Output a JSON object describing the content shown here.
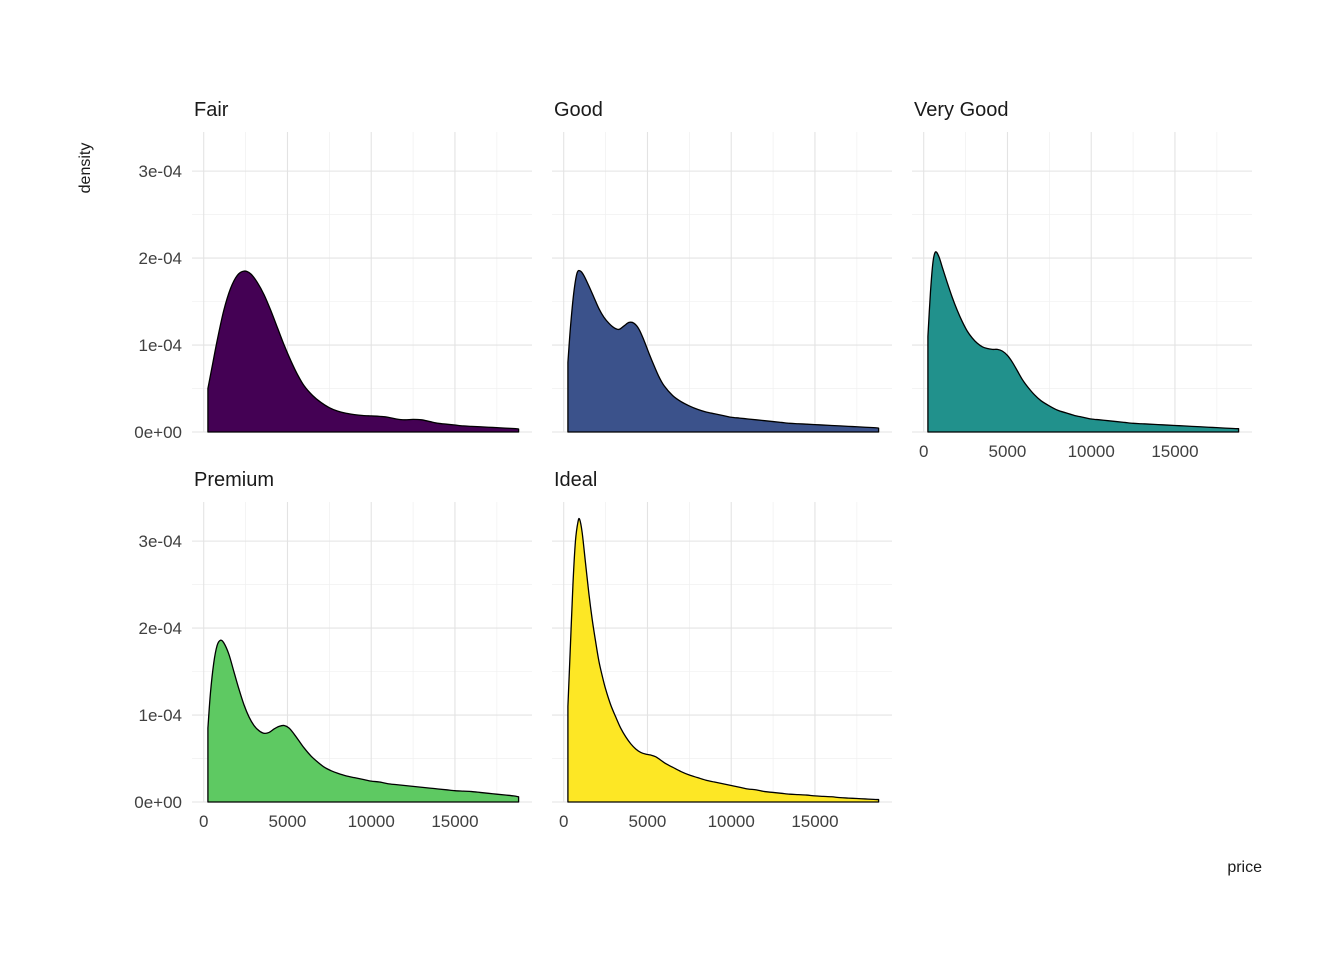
{
  "figure": {
    "xlabel": "price",
    "ylabel": "density"
  },
  "chart_data": {
    "type": "area",
    "variant": "faceted-density",
    "facet_variable": "cut",
    "x_variable": "price",
    "y_variable": "density",
    "grid": true,
    "legend": "none",
    "background": "#ffffff",
    "grid_color_major": "#e3e3e3",
    "grid_color_minor": "#f0f0f0",
    "curve_stroke": "#000000",
    "y_scale_note": "y values and y ticks are in units of 1e-4 density",
    "xlim": [
      -700,
      19600
    ],
    "ylim": [
      0,
      3.45
    ],
    "x_ticks": {
      "values": [
        0,
        5000,
        10000,
        15000
      ],
      "labels": [
        "0",
        "5000",
        "10000",
        "15000"
      ]
    },
    "x_minor": [
      2500,
      7500,
      12500,
      17500
    ],
    "y_ticks": {
      "values": [
        0,
        1,
        2,
        3
      ],
      "labels": [
        "0e+00",
        "1e-04",
        "2e-04",
        "3e-04"
      ]
    },
    "y_minor": [
      0.5,
      1.5,
      2.5
    ],
    "facets": [
      {
        "label": "Fair",
        "row": 0,
        "col": 0,
        "fill": "#440154",
        "show_x_axis": false,
        "show_y_axis": true,
        "points": [
          [
            250,
            0.5
          ],
          [
            500,
            0.75
          ],
          [
            800,
            1.05
          ],
          [
            1200,
            1.4
          ],
          [
            1600,
            1.65
          ],
          [
            2000,
            1.8
          ],
          [
            2400,
            1.85
          ],
          [
            2800,
            1.82
          ],
          [
            3200,
            1.72
          ],
          [
            3600,
            1.58
          ],
          [
            4000,
            1.4
          ],
          [
            4400,
            1.2
          ],
          [
            4800,
            1.0
          ],
          [
            5200,
            0.82
          ],
          [
            5600,
            0.66
          ],
          [
            6000,
            0.53
          ],
          [
            6500,
            0.42
          ],
          [
            7000,
            0.34
          ],
          [
            7500,
            0.28
          ],
          [
            8000,
            0.24
          ],
          [
            8500,
            0.215
          ],
          [
            9000,
            0.2
          ],
          [
            9500,
            0.19
          ],
          [
            10000,
            0.185
          ],
          [
            10500,
            0.18
          ],
          [
            11000,
            0.17
          ],
          [
            11500,
            0.15
          ],
          [
            12000,
            0.14
          ],
          [
            12500,
            0.145
          ],
          [
            13000,
            0.14
          ],
          [
            13500,
            0.12
          ],
          [
            14000,
            0.1
          ],
          [
            14500,
            0.09
          ],
          [
            15000,
            0.08
          ],
          [
            15500,
            0.07
          ],
          [
            16000,
            0.065
          ],
          [
            16500,
            0.06
          ],
          [
            17000,
            0.055
          ],
          [
            17500,
            0.05
          ],
          [
            18000,
            0.045
          ],
          [
            18500,
            0.04
          ],
          [
            18800,
            0.035
          ]
        ]
      },
      {
        "label": "Good",
        "row": 0,
        "col": 1,
        "fill": "#3B528B",
        "show_x_axis": false,
        "show_y_axis": false,
        "points": [
          [
            250,
            0.8
          ],
          [
            400,
            1.2
          ],
          [
            600,
            1.6
          ],
          [
            800,
            1.83
          ],
          [
            1000,
            1.85
          ],
          [
            1200,
            1.8
          ],
          [
            1500,
            1.68
          ],
          [
            1800,
            1.55
          ],
          [
            2100,
            1.42
          ],
          [
            2400,
            1.32
          ],
          [
            2700,
            1.25
          ],
          [
            3000,
            1.2
          ],
          [
            3300,
            1.18
          ],
          [
            3600,
            1.22
          ],
          [
            3900,
            1.26
          ],
          [
            4200,
            1.25
          ],
          [
            4500,
            1.18
          ],
          [
            4800,
            1.05
          ],
          [
            5100,
            0.9
          ],
          [
            5400,
            0.76
          ],
          [
            5700,
            0.63
          ],
          [
            6000,
            0.53
          ],
          [
            6500,
            0.42
          ],
          [
            7000,
            0.35
          ],
          [
            7500,
            0.3
          ],
          [
            8000,
            0.26
          ],
          [
            8500,
            0.23
          ],
          [
            9000,
            0.21
          ],
          [
            9500,
            0.19
          ],
          [
            10000,
            0.17
          ],
          [
            10500,
            0.16
          ],
          [
            11000,
            0.15
          ],
          [
            11500,
            0.14
          ],
          [
            12000,
            0.13
          ],
          [
            12500,
            0.12
          ],
          [
            13000,
            0.11
          ],
          [
            13500,
            0.1
          ],
          [
            14000,
            0.095
          ],
          [
            14500,
            0.09
          ],
          [
            15000,
            0.085
          ],
          [
            15500,
            0.08
          ],
          [
            16000,
            0.075
          ],
          [
            16500,
            0.07
          ],
          [
            17000,
            0.065
          ],
          [
            17500,
            0.06
          ],
          [
            18000,
            0.055
          ],
          [
            18500,
            0.05
          ],
          [
            18800,
            0.045
          ]
        ]
      },
      {
        "label": "Very Good",
        "row": 0,
        "col": 2,
        "fill": "#21918C",
        "show_x_axis": true,
        "show_y_axis": false,
        "points": [
          [
            250,
            1.1
          ],
          [
            400,
            1.6
          ],
          [
            550,
            1.95
          ],
          [
            700,
            2.07
          ],
          [
            900,
            2.02
          ],
          [
            1100,
            1.9
          ],
          [
            1400,
            1.72
          ],
          [
            1700,
            1.55
          ],
          [
            2000,
            1.4
          ],
          [
            2300,
            1.27
          ],
          [
            2600,
            1.16
          ],
          [
            2900,
            1.08
          ],
          [
            3200,
            1.02
          ],
          [
            3500,
            0.98
          ],
          [
            3800,
            0.96
          ],
          [
            4100,
            0.95
          ],
          [
            4400,
            0.95
          ],
          [
            4700,
            0.93
          ],
          [
            5000,
            0.88
          ],
          [
            5300,
            0.8
          ],
          [
            5600,
            0.7
          ],
          [
            5900,
            0.6
          ],
          [
            6200,
            0.52
          ],
          [
            6600,
            0.43
          ],
          [
            7000,
            0.36
          ],
          [
            7500,
            0.3
          ],
          [
            8000,
            0.25
          ],
          [
            8500,
            0.22
          ],
          [
            9000,
            0.19
          ],
          [
            9500,
            0.17
          ],
          [
            10000,
            0.15
          ],
          [
            10500,
            0.14
          ],
          [
            11000,
            0.13
          ],
          [
            11500,
            0.12
          ],
          [
            12000,
            0.11
          ],
          [
            12500,
            0.1
          ],
          [
            13000,
            0.095
          ],
          [
            13500,
            0.09
          ],
          [
            14000,
            0.085
          ],
          [
            14500,
            0.08
          ],
          [
            15000,
            0.075
          ],
          [
            15500,
            0.07
          ],
          [
            16000,
            0.065
          ],
          [
            16500,
            0.06
          ],
          [
            17000,
            0.055
          ],
          [
            17500,
            0.05
          ],
          [
            18000,
            0.045
          ],
          [
            18500,
            0.04
          ],
          [
            18800,
            0.038
          ]
        ]
      },
      {
        "label": "Premium",
        "row": 1,
        "col": 0,
        "fill": "#5EC962",
        "show_x_axis": true,
        "show_y_axis": true,
        "points": [
          [
            250,
            0.85
          ],
          [
            400,
            1.25
          ],
          [
            600,
            1.6
          ],
          [
            800,
            1.8
          ],
          [
            1000,
            1.86
          ],
          [
            1200,
            1.83
          ],
          [
            1500,
            1.7
          ],
          [
            1800,
            1.5
          ],
          [
            2100,
            1.3
          ],
          [
            2400,
            1.12
          ],
          [
            2700,
            0.98
          ],
          [
            3000,
            0.88
          ],
          [
            3300,
            0.82
          ],
          [
            3600,
            0.79
          ],
          [
            3900,
            0.8
          ],
          [
            4200,
            0.84
          ],
          [
            4500,
            0.87
          ],
          [
            4800,
            0.88
          ],
          [
            5100,
            0.85
          ],
          [
            5400,
            0.78
          ],
          [
            5700,
            0.7
          ],
          [
            6000,
            0.62
          ],
          [
            6400,
            0.53
          ],
          [
            6800,
            0.46
          ],
          [
            7200,
            0.4
          ],
          [
            7600,
            0.36
          ],
          [
            8000,
            0.33
          ],
          [
            8500,
            0.3
          ],
          [
            9000,
            0.28
          ],
          [
            9500,
            0.26
          ],
          [
            10000,
            0.24
          ],
          [
            10500,
            0.23
          ],
          [
            11000,
            0.21
          ],
          [
            11500,
            0.2
          ],
          [
            12000,
            0.19
          ],
          [
            12500,
            0.18
          ],
          [
            13000,
            0.17
          ],
          [
            13500,
            0.16
          ],
          [
            14000,
            0.15
          ],
          [
            14500,
            0.14
          ],
          [
            15000,
            0.13
          ],
          [
            15500,
            0.125
          ],
          [
            16000,
            0.12
          ],
          [
            16500,
            0.11
          ],
          [
            17000,
            0.1
          ],
          [
            17500,
            0.09
          ],
          [
            18000,
            0.08
          ],
          [
            18500,
            0.07
          ],
          [
            18800,
            0.06
          ]
        ]
      },
      {
        "label": "Ideal",
        "row": 1,
        "col": 1,
        "fill": "#FDE725",
        "show_x_axis": true,
        "show_y_axis": false,
        "points": [
          [
            250,
            1.1
          ],
          [
            400,
            1.8
          ],
          [
            550,
            2.5
          ],
          [
            700,
            3.0
          ],
          [
            850,
            3.22
          ],
          [
            950,
            3.25
          ],
          [
            1100,
            3.1
          ],
          [
            1300,
            2.75
          ],
          [
            1500,
            2.4
          ],
          [
            1700,
            2.1
          ],
          [
            1900,
            1.85
          ],
          [
            2100,
            1.62
          ],
          [
            2300,
            1.45
          ],
          [
            2500,
            1.3
          ],
          [
            2800,
            1.12
          ],
          [
            3100,
            0.98
          ],
          [
            3400,
            0.85
          ],
          [
            3700,
            0.75
          ],
          [
            4000,
            0.67
          ],
          [
            4300,
            0.61
          ],
          [
            4600,
            0.57
          ],
          [
            4900,
            0.55
          ],
          [
            5200,
            0.54
          ],
          [
            5500,
            0.52
          ],
          [
            5800,
            0.48
          ],
          [
            6100,
            0.44
          ],
          [
            6500,
            0.4
          ],
          [
            7000,
            0.35
          ],
          [
            7500,
            0.31
          ],
          [
            8000,
            0.28
          ],
          [
            8500,
            0.25
          ],
          [
            9000,
            0.23
          ],
          [
            9500,
            0.21
          ],
          [
            10000,
            0.19
          ],
          [
            10500,
            0.17
          ],
          [
            11000,
            0.15
          ],
          [
            11500,
            0.14
          ],
          [
            12000,
            0.12
          ],
          [
            12500,
            0.11
          ],
          [
            13000,
            0.1
          ],
          [
            13500,
            0.09
          ],
          [
            14000,
            0.085
          ],
          [
            14500,
            0.08
          ],
          [
            15000,
            0.07
          ],
          [
            15500,
            0.065
          ],
          [
            16000,
            0.06
          ],
          [
            16500,
            0.05
          ],
          [
            17000,
            0.045
          ],
          [
            17500,
            0.04
          ],
          [
            18000,
            0.035
          ],
          [
            18500,
            0.03
          ],
          [
            18800,
            0.028
          ]
        ]
      }
    ]
  }
}
